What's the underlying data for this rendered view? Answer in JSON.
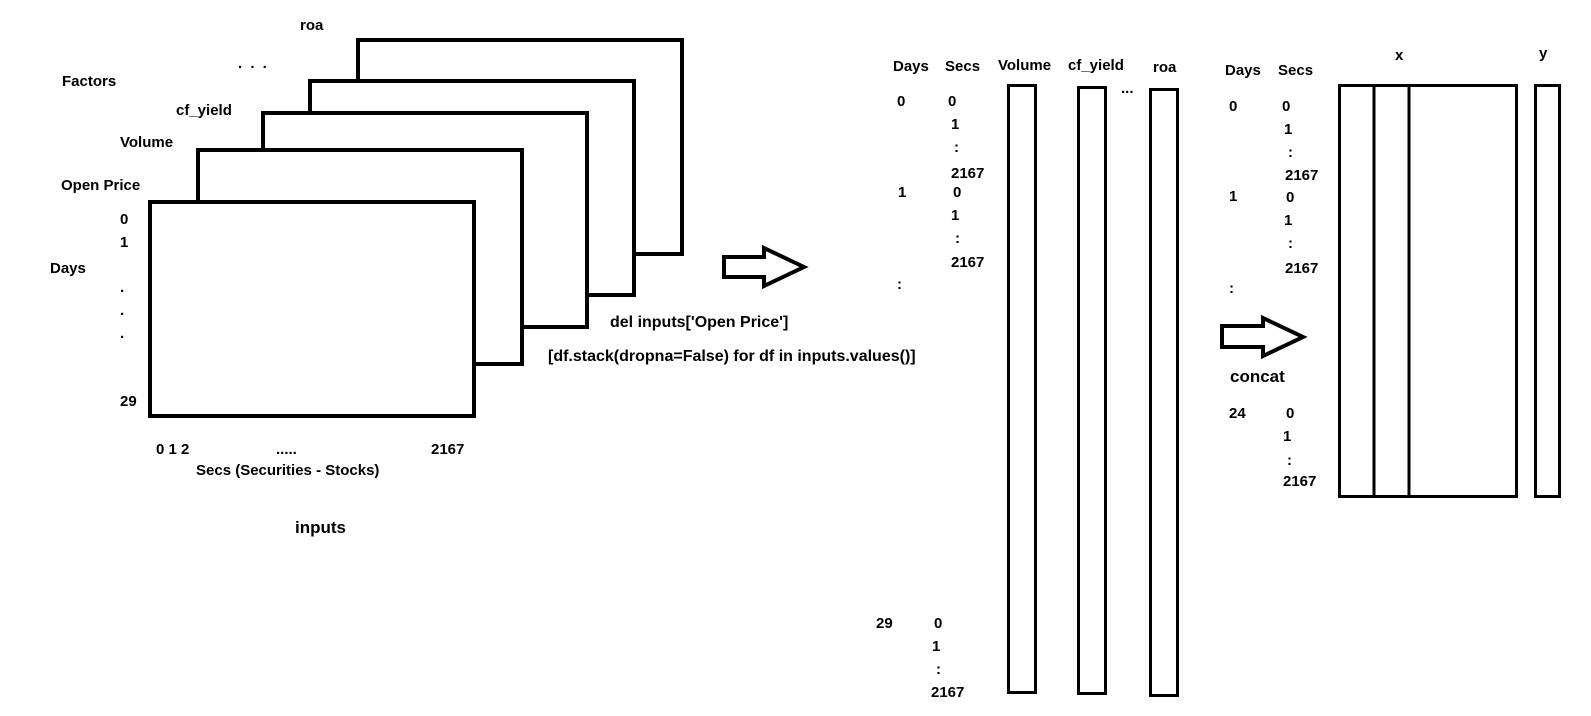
{
  "stack": {
    "factors_label": "Factors",
    "ellipsis": ". . .",
    "layers": [
      "roa",
      "cf_yield",
      "Volume",
      "Open Price"
    ],
    "days_label": "Days",
    "day_ticks": [
      "0",
      "1",
      ".",
      ".",
      ".",
      "29"
    ],
    "sec_ticks_start": "0 1 2",
    "sec_ticks_dots": ".....",
    "sec_ticks_end": "2167",
    "secs_label": "Secs (Securities - Stocks)",
    "caption": "inputs"
  },
  "step1": {
    "line1": "del inputs['Open Price']",
    "line2": "[df.stack(dropna=False) for df in inputs.values()]"
  },
  "stacked": {
    "headers": [
      "Days",
      "Secs",
      "Volume",
      "cf_yield",
      "roa"
    ],
    "col_ellipsis": "...",
    "day_0": "0",
    "day_1": "1",
    "day_colon": ":",
    "day_29": "29",
    "secs_0": [
      "0",
      "1",
      ":",
      "2167"
    ],
    "secs_1": [
      "0",
      "1",
      ":",
      "2167"
    ],
    "secs_29": [
      "0",
      "1",
      ":",
      "2167"
    ]
  },
  "step2": {
    "label": "concat"
  },
  "final": {
    "headers": [
      "Days",
      "Secs"
    ],
    "day_0": "0",
    "day_1": "1",
    "day_colon": ":",
    "day_24": "24",
    "secs_0": [
      "0",
      "1",
      ":",
      "2167"
    ],
    "secs_1": [
      "0",
      "1",
      ":",
      "2167"
    ],
    "secs_24": [
      "0",
      "1",
      ":",
      "2167"
    ],
    "x_label": "x",
    "y_label": "y"
  }
}
